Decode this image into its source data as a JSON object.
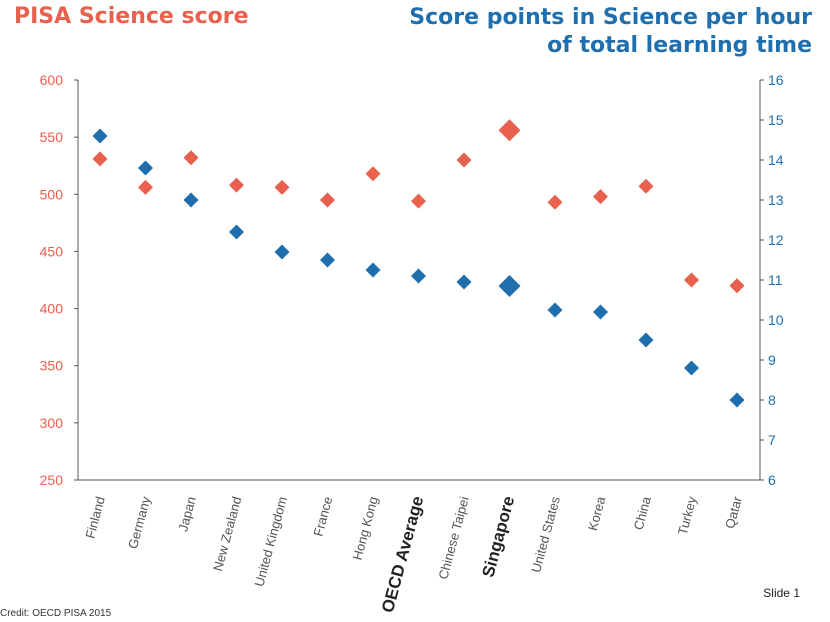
{
  "titles": {
    "left": "PISA Science score",
    "right": "Score points in Science per hour of total learning time"
  },
  "footer": {
    "credit": "Credit: OECD PISA 2015",
    "slide": "Slide 1"
  },
  "colors": {
    "pisa": "#e8604e",
    "per_hour": "#1f6fae",
    "axis": "#555555"
  },
  "chart_data": {
    "type": "scatter",
    "categories": [
      "Finland",
      "Germany",
      "Japan",
      "New Zealand",
      "United Kingdom",
      "France",
      "Hong Kong",
      "OECD Average",
      "Chinese Taipei",
      "Singapore",
      "United States",
      "Korea",
      "China",
      "Turkey",
      "Qatar"
    ],
    "bold_categories": [
      "OECD Average",
      "Singapore"
    ],
    "highlight_category": "Singapore",
    "series": [
      {
        "name": "PISA Science score",
        "axis": "left",
        "values": [
          531,
          506,
          532,
          508,
          506,
          495,
          518,
          494,
          530,
          556,
          493,
          498,
          507,
          425,
          420
        ]
      },
      {
        "name": "Score points in Science per hour of total learning time",
        "axis": "right",
        "values": [
          14.6,
          13.8,
          13.0,
          12.2,
          11.7,
          11.5,
          11.25,
          11.1,
          10.95,
          10.85,
          10.25,
          10.2,
          9.5,
          8.8,
          8.0
        ]
      }
    ],
    "y_left": {
      "range": [
        250,
        600
      ],
      "ticks": [
        "250",
        "300",
        "350",
        "400",
        "450",
        "500",
        "550",
        "600"
      ]
    },
    "y_right": {
      "range": [
        6,
        16
      ],
      "ticks": [
        "6",
        "7",
        "8",
        "9",
        "10",
        "11",
        "12",
        "13",
        "14",
        "15",
        "16"
      ]
    },
    "grid": false
  }
}
